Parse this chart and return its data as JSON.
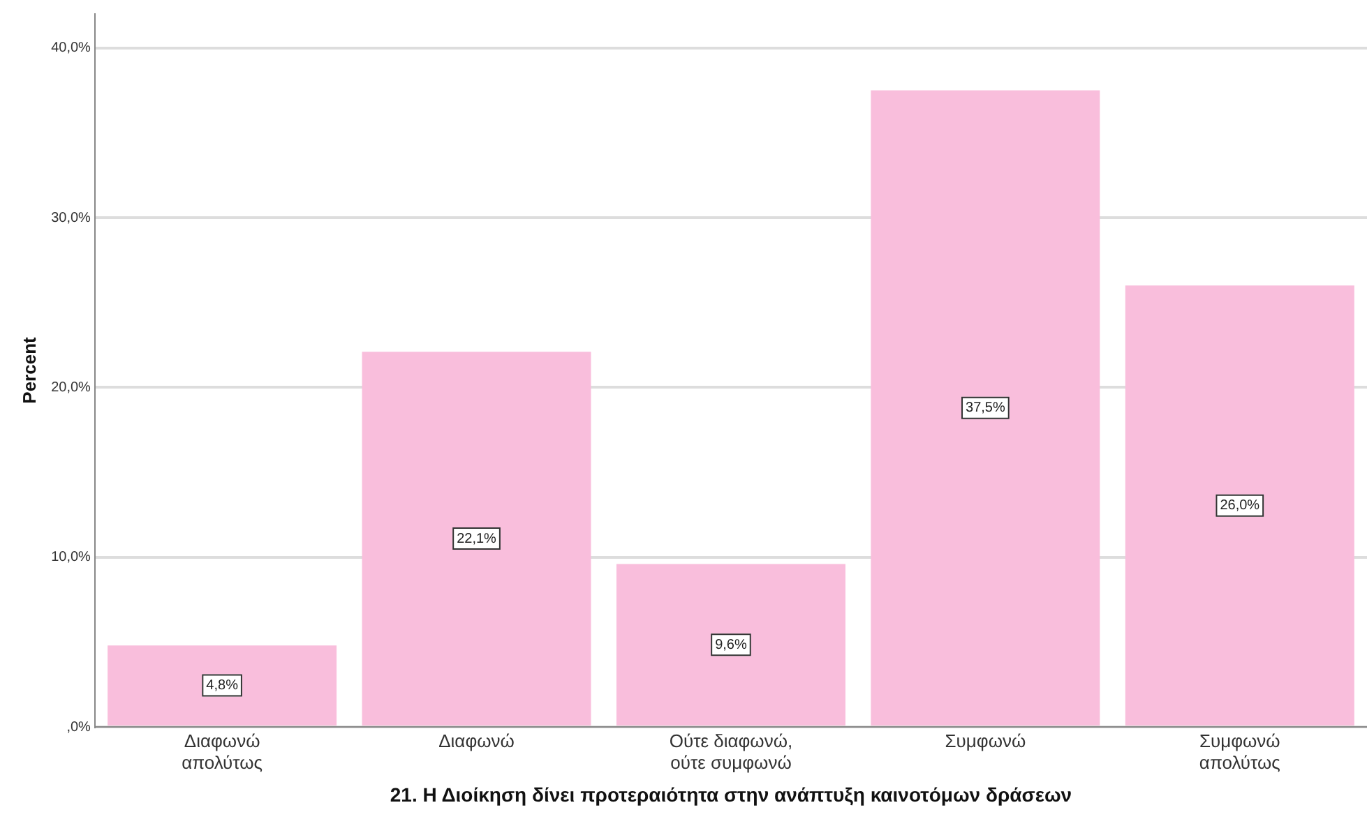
{
  "chart_data": {
    "type": "bar",
    "xlabel": "21. Η Διοίκηση δίνει προτεραιότητα στην ανάπτυξη καινοτόμων δράσεων",
    "ylabel": "Percent",
    "categories": [
      "Διαφωνώ απολύτως",
      "Διαφωνώ",
      "Ούτε διαφωνώ, ούτε συμφωνώ",
      "Συμφωνώ",
      "Συμφωνώ απολύτως"
    ],
    "values": [
      4.8,
      22.1,
      9.6,
      37.5,
      26.0
    ],
    "value_labels": [
      "4,8%",
      "22,1%",
      "9,6%",
      "37,5%",
      "26,0%"
    ],
    "color": "#f9bedc",
    "ylim": [
      0,
      42
    ],
    "yticks": [
      {
        "value": 0,
        "label": ",0%"
      },
      {
        "value": 10,
        "label": "10,0%"
      },
      {
        "value": 20,
        "label": "20,0%"
      },
      {
        "value": 30,
        "label": "30,0%"
      },
      {
        "value": 40,
        "label": "40,0%"
      }
    ],
    "grid": "y",
    "legend": false
  }
}
